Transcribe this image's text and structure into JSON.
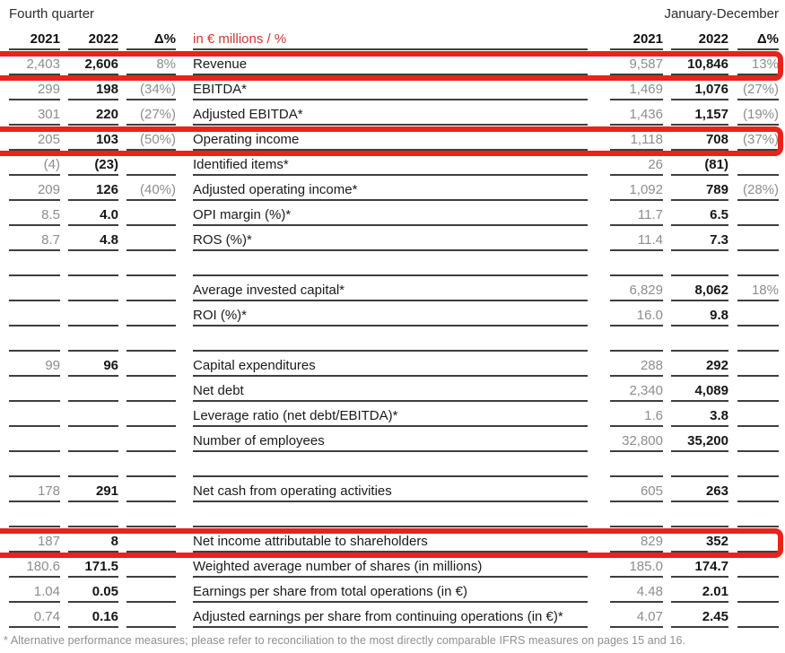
{
  "page": {
    "period_left": "Fourth quarter",
    "period_right": "January-December",
    "unit_label": "in € millions / %",
    "columns": {
      "y2021": "2021",
      "y2022": "2022",
      "delta": "Δ%"
    },
    "footnote": "* Alternative performance measures; please refer to reconciliation to the most directly comparable IFRS measures on pages 15 and 16."
  },
  "colors": {
    "highlight_red": "#e8231c",
    "unit_label_red": "#cf372e",
    "row_line": "#3e3e3e",
    "muted_gray": "#8d8d8d",
    "value_black": "#161616"
  },
  "table": {
    "rows": [
      {
        "label": "Revenue",
        "fq2021": "2,403",
        "fq2022": "2,606",
        "fq_delta": "8%",
        "jd2021": "9,587",
        "jd2022": "10,846",
        "jd_delta": "13%",
        "highlight": true
      },
      {
        "label": "EBITDA*",
        "fq2021": "299",
        "fq2022": "198",
        "fq_delta": "(34%)",
        "jd2021": "1,469",
        "jd2022": "1,076",
        "jd_delta": "(27%)"
      },
      {
        "label": "Adjusted EBITDA*",
        "fq2021": "301",
        "fq2022": "220",
        "fq_delta": "(27%)",
        "jd2021": "1,436",
        "jd2022": "1,157",
        "jd_delta": "(19%)"
      },
      {
        "label": "Operating income",
        "fq2021": "205",
        "fq2022": "103",
        "fq_delta": "(50%)",
        "jd2021": "1,118",
        "jd2022": "708",
        "jd_delta": "(37%)",
        "highlight": true
      },
      {
        "label": "Identified items*",
        "fq2021": "(4)",
        "fq2022": "(23)",
        "fq_delta": "",
        "jd2021": "26",
        "jd2022": "(81)",
        "jd_delta": ""
      },
      {
        "label": "Adjusted operating income*",
        "fq2021": "209",
        "fq2022": "126",
        "fq_delta": "(40%)",
        "jd2021": "1,092",
        "jd2022": "789",
        "jd_delta": "(28%)"
      },
      {
        "label": "OPI margin (%)*",
        "fq2021": "8.5",
        "fq2022": "4.0",
        "fq_delta": "",
        "jd2021": "11.7",
        "jd2022": "6.5",
        "jd_delta": ""
      },
      {
        "label": "ROS (%)*",
        "fq2021": "8.7",
        "fq2022": "4.8",
        "fq_delta": "",
        "jd2021": "11.4",
        "jd2022": "7.3",
        "jd_delta": ""
      },
      {
        "label": "",
        "fq2021": "",
        "fq2022": "",
        "fq_delta": "",
        "jd2021": "",
        "jd2022": "",
        "jd_delta": "",
        "blank": true
      },
      {
        "label": "Average invested capital*",
        "fq2021": "",
        "fq2022": "",
        "fq_delta": "",
        "jd2021": "6,829",
        "jd2022": "8,062",
        "jd_delta": "18%"
      },
      {
        "label": "ROI (%)*",
        "fq2021": "",
        "fq2022": "",
        "fq_delta": "",
        "jd2021": "16.0",
        "jd2022": "9.8",
        "jd_delta": ""
      },
      {
        "label": "",
        "fq2021": "",
        "fq2022": "",
        "fq_delta": "",
        "jd2021": "",
        "jd2022": "",
        "jd_delta": "",
        "blank": true
      },
      {
        "label": "Capital expenditures",
        "fq2021": "99",
        "fq2022": "96",
        "fq_delta": "",
        "jd2021": "288",
        "jd2022": "292",
        "jd_delta": ""
      },
      {
        "label": "Net debt",
        "fq2021": "",
        "fq2022": "",
        "fq_delta": "",
        "jd2021": "2,340",
        "jd2022": "4,089",
        "jd_delta": ""
      },
      {
        "label": "Leverage ratio (net debt/EBITDA)*",
        "fq2021": "",
        "fq2022": "",
        "fq_delta": "",
        "jd2021": "1.6",
        "jd2022": "3.8",
        "jd_delta": ""
      },
      {
        "label": "Number of employees",
        "fq2021": "",
        "fq2022": "",
        "fq_delta": "",
        "jd2021": "32,800",
        "jd2022": "35,200",
        "jd_delta": ""
      },
      {
        "label": "",
        "fq2021": "",
        "fq2022": "",
        "fq_delta": "",
        "jd2021": "",
        "jd2022": "",
        "jd_delta": "",
        "blank": true
      },
      {
        "label": "Net cash from operating activities",
        "fq2021": "178",
        "fq2022": "291",
        "fq_delta": "",
        "jd2021": "605",
        "jd2022": "263",
        "jd_delta": ""
      },
      {
        "label": "",
        "fq2021": "",
        "fq2022": "",
        "fq_delta": "",
        "jd2021": "",
        "jd2022": "",
        "jd_delta": "",
        "blank": true
      },
      {
        "label": "Net income attributable to shareholders",
        "fq2021": "187",
        "fq2022": "8",
        "fq_delta": "",
        "jd2021": "829",
        "jd2022": "352",
        "jd_delta": "",
        "highlight": true
      },
      {
        "label": "Weighted average number of shares (in millions)",
        "fq2021": "180.6",
        "fq2022": "171.5",
        "fq_delta": "",
        "jd2021": "185.0",
        "jd2022": "174.7",
        "jd_delta": ""
      },
      {
        "label": "Earnings per share from total operations (in €)",
        "fq2021": "1.04",
        "fq2022": "0.05",
        "fq_delta": "",
        "jd2021": "4.48",
        "jd2022": "2.01",
        "jd_delta": ""
      },
      {
        "label": "Adjusted earnings per share from continuing operations (in €)*",
        "fq2021": "0.74",
        "fq2022": "0.16",
        "fq_delta": "",
        "jd2021": "4.07",
        "jd2022": "2.45",
        "jd_delta": ""
      }
    ]
  }
}
